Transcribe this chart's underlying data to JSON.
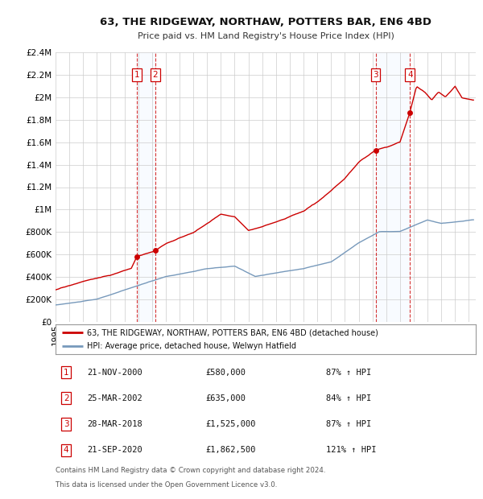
{
  "title1": "63, THE RIDGEWAY, NORTHAW, POTTERS BAR, EN6 4BD",
  "title2": "Price paid vs. HM Land Registry's House Price Index (HPI)",
  "ylim": [
    0,
    2400000
  ],
  "yticks": [
    0,
    200000,
    400000,
    600000,
    800000,
    1000000,
    1200000,
    1400000,
    1600000,
    1800000,
    2000000,
    2200000,
    2400000
  ],
  "ytick_labels": [
    "£0",
    "£200K",
    "£400K",
    "£600K",
    "£800K",
    "£1M",
    "£1.2M",
    "£1.4M",
    "£1.6M",
    "£1.8M",
    "£2M",
    "£2.2M",
    "£2.4M"
  ],
  "xlim_start": 1995.0,
  "xlim_end": 2025.5,
  "hpi_color": "#7799bb",
  "price_color": "#cc0000",
  "shade_color": "#ddeeff",
  "transactions": [
    {
      "date": 2000.896,
      "price": 580000,
      "label": "1"
    },
    {
      "date": 2002.228,
      "price": 635000,
      "label": "2"
    },
    {
      "date": 2018.228,
      "price": 1525000,
      "label": "3"
    },
    {
      "date": 2020.728,
      "price": 1862500,
      "label": "4"
    }
  ],
  "table_rows": [
    {
      "num": "1",
      "date": "21-NOV-2000",
      "price": "£580,000",
      "hpi": "87% ↑ HPI"
    },
    {
      "num": "2",
      "date": "25-MAR-2002",
      "price": "£635,000",
      "hpi": "84% ↑ HPI"
    },
    {
      "num": "3",
      "date": "28-MAR-2018",
      "price": "£1,525,000",
      "hpi": "87% ↑ HPI"
    },
    {
      "num": "4",
      "date": "21-SEP-2020",
      "price": "£1,862,500",
      "hpi": "121% ↑ HPI"
    }
  ],
  "legend_line1": "63, THE RIDGEWAY, NORTHAW, POTTERS BAR, EN6 4BD (detached house)",
  "legend_line2": "HPI: Average price, detached house, Welwyn Hatfield",
  "footnote1": "Contains HM Land Registry data © Crown copyright and database right 2024.",
  "footnote2": "This data is licensed under the Open Government Licence v3.0.",
  "background_color": "#ffffff",
  "grid_color": "#cccccc"
}
